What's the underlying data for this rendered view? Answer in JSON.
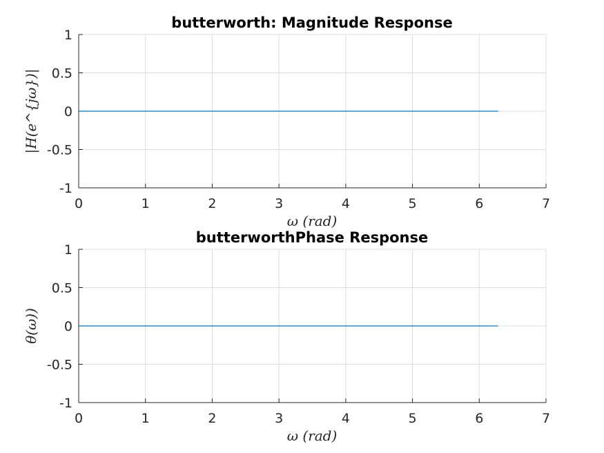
{
  "chart_data": [
    {
      "type": "line",
      "title": "butterworth: Magnitude Response",
      "xlabel": "ω (rad)",
      "ylabel": "|H(e^{jω})|",
      "xlim": [
        0,
        7
      ],
      "ylim": [
        -1,
        1
      ],
      "xticks": [
        0,
        1,
        2,
        3,
        4,
        5,
        6,
        7
      ],
      "yticks": [
        -1,
        -0.5,
        0,
        0.5,
        1
      ],
      "xtick_labels": [
        "0",
        "1",
        "2",
        "3",
        "4",
        "5",
        "6",
        "7"
      ],
      "ytick_labels": [
        "-1",
        "-0.5",
        "0",
        "0.5",
        "1"
      ],
      "grid": true,
      "series": [
        {
          "color": "#0072bd",
          "x": [
            0,
            6.2832
          ],
          "y": [
            0,
            0
          ]
        }
      ]
    },
    {
      "type": "line",
      "title": "butterworthPhase Response",
      "xlabel": "ω (rad)",
      "ylabel": "θ(ω))",
      "xlim": [
        0,
        7
      ],
      "ylim": [
        -1,
        1
      ],
      "xticks": [
        0,
        1,
        2,
        3,
        4,
        5,
        6,
        7
      ],
      "yticks": [
        -1,
        -0.5,
        0,
        0.5,
        1
      ],
      "xtick_labels": [
        "0",
        "1",
        "2",
        "3",
        "4",
        "5",
        "6",
        "7"
      ],
      "ytick_labels": [
        "-1",
        "-0.5",
        "0",
        "0.5",
        "1"
      ],
      "grid": true,
      "series": [
        {
          "color": "#0072bd",
          "x": [
            0,
            6.2832
          ],
          "y": [
            0,
            0
          ]
        }
      ]
    }
  ]
}
